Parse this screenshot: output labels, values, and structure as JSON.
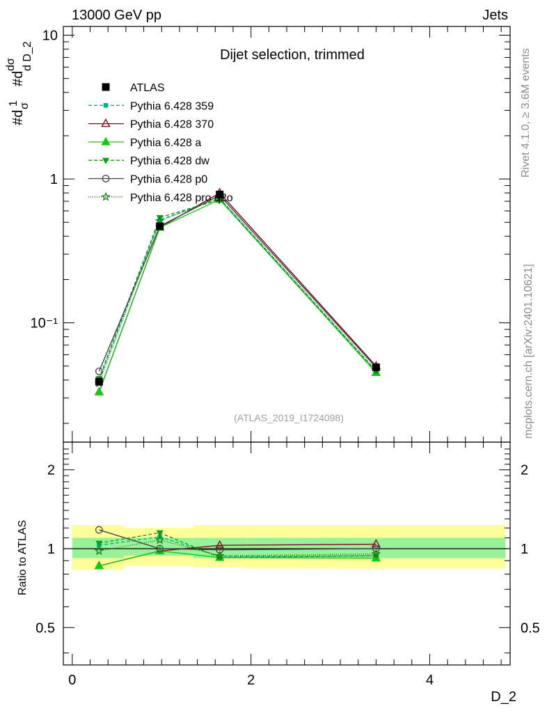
{
  "header": {
    "left": "13000 GeV pp",
    "right": "Jets"
  },
  "side_text": {
    "rivet": "Rivet 4.1.0, ≥ 3.6M events",
    "site": "mcplots.cern.ch [arXiv:2401.10621]"
  },
  "chart_data": [
    {
      "type": "line",
      "title": "Dijet selection, trimmed",
      "watermark": "(ATLAS_2019_I1724098)",
      "ylabel": "#d1σ #ddσd D_2",
      "xlabel": "D_2",
      "yscale": "log",
      "xlim": [
        -0.1,
        4.9
      ],
      "ylim": [
        0.0148,
        11.5
      ],
      "yticks": [
        {
          "value": 10,
          "label": "10"
        },
        {
          "value": 1,
          "label": "1"
        },
        {
          "value": 0.1,
          "label": "10⁻¹"
        }
      ],
      "x": [
        0.3,
        0.98,
        1.65,
        3.4
      ],
      "series": [
        {
          "name": "ATLAS",
          "color": "#000000",
          "marker": "square",
          "dash": "none",
          "values": [
            0.039,
            0.47,
            0.78,
            0.049
          ]
        },
        {
          "name": "Pythia 6.428 359",
          "color": "#00b38f",
          "marker": "smallsquare",
          "dash": "5,3",
          "values": [
            0.04,
            0.52,
            0.73,
            0.046
          ]
        },
        {
          "name": "Pythia 6.428 370",
          "color": "#7f0a1e",
          "marker": "triangle-open",
          "dash": "none",
          "values": [
            0.033,
            0.46,
            0.8,
            0.05
          ]
        },
        {
          "name": "Pythia 6.428 a",
          "color": "#16c716",
          "marker": "triangle",
          "dash": "none",
          "values": [
            0.033,
            0.46,
            0.72,
            0.045
          ]
        },
        {
          "name": "Pythia 6.428 dw",
          "color": "#169c16",
          "marker": "triangle-down",
          "dash": "5,3",
          "values": [
            0.041,
            0.54,
            0.72,
            0.046
          ]
        },
        {
          "name": "Pythia 6.428 p0",
          "color": "#444444",
          "marker": "circle-open",
          "dash": "none",
          "values": [
            0.046,
            0.47,
            0.77,
            0.049
          ]
        },
        {
          "name": "Pythia 6.428 pro q2o",
          "color": "#117a11",
          "marker": "star",
          "dash": "1,2",
          "values": [
            0.038,
            0.51,
            0.74,
            0.047
          ]
        }
      ]
    },
    {
      "type": "line",
      "ylabel": "Ratio to ATLAS",
      "xlabel": "D_2",
      "xlim": [
        -0.1,
        4.9
      ],
      "ylim": [
        0.36,
        2.55
      ],
      "yticks": [
        {
          "value": 2,
          "label": "2"
        },
        {
          "value": 1,
          "label": "1"
        },
        {
          "value": 0.5,
          "label": "0.5"
        }
      ],
      "xticks": [
        {
          "value": 0,
          "label": "0"
        },
        {
          "value": 2,
          "label": "2"
        },
        {
          "value": 4,
          "label": "4"
        }
      ],
      "x": [
        0.3,
        0.98,
        1.65,
        3.4
      ],
      "bands": [
        {
          "x0": 0.0,
          "x1": 0.58,
          "inner": [
            0.92,
            1.1
          ],
          "outer": [
            0.83,
            1.23
          ]
        },
        {
          "x0": 0.58,
          "x1": 1.35,
          "inner": [
            0.94,
            1.1
          ],
          "outer": [
            0.86,
            1.2
          ]
        },
        {
          "x0": 1.35,
          "x1": 1.95,
          "inner": [
            0.92,
            1.1
          ],
          "outer": [
            0.85,
            1.23
          ]
        },
        {
          "x0": 1.95,
          "x1": 4.85,
          "inner": [
            0.92,
            1.1
          ],
          "outer": [
            0.84,
            1.23
          ]
        }
      ],
      "series": [
        {
          "name": "Pythia 6.428 359",
          "color": "#00b38f",
          "marker": "smallsquare",
          "dash": "5,3",
          "values": [
            1.03,
            1.11,
            0.935,
            0.94
          ]
        },
        {
          "name": "Pythia 6.428 370",
          "color": "#7f0a1e",
          "marker": "triangle-open",
          "dash": "none",
          "values": [
            0.86,
            0.98,
            1.03,
            1.04
          ]
        },
        {
          "name": "Pythia 6.428 a",
          "color": "#16c716",
          "marker": "triangle",
          "dash": "none",
          "values": [
            0.86,
            0.98,
            0.925,
            0.92
          ]
        },
        {
          "name": "Pythia 6.428 dw",
          "color": "#169c16",
          "marker": "triangle-down",
          "dash": "5,3",
          "values": [
            1.05,
            1.15,
            0.925,
            0.94
          ]
        },
        {
          "name": "Pythia 6.428 p0",
          "color": "#444444",
          "marker": "circle-open",
          "dash": "none",
          "values": [
            1.18,
            1.0,
            0.99,
            1.0
          ]
        },
        {
          "name": "Pythia 6.428 pro q2o",
          "color": "#117a11",
          "marker": "star",
          "dash": "1,2",
          "values": [
            0.98,
            1.08,
            0.94,
            0.955
          ]
        }
      ]
    }
  ]
}
